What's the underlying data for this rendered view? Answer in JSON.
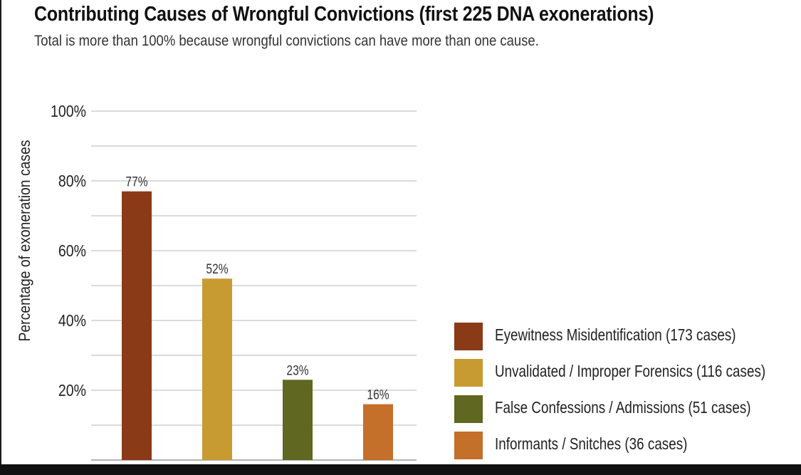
{
  "chart_data": {
    "type": "bar",
    "title": "Contributing Causes of Wrongful Convictions (first 225 DNA exonerations)",
    "subtitle": "Total is more than 100% because wrongful convictions can have more than one cause.",
    "ylabel": "Percentage  of exoneration cases",
    "xlabel": "",
    "ylim": [
      0,
      100
    ],
    "yticks": [
      20,
      40,
      60,
      80,
      100
    ],
    "ytick_labels": [
      "20%",
      "40%",
      "60%",
      "80%",
      "100%"
    ],
    "grid": true,
    "legend_position": "bottom-right",
    "categories": [
      "Eyewitness Misidentification (173 cases)",
      "Unvalidated / Improper Forensics (116 cases)",
      "False Confessions / Admissions (51 cases)",
      "Informants / Snitches (36 cases)"
    ],
    "values": [
      77,
      52,
      23,
      16
    ],
    "value_labels": [
      "77%",
      "52%",
      "23%",
      "16%"
    ],
    "colors": [
      "#8b3a17",
      "#c89b32",
      "#5f6720",
      "#c46f2a"
    ]
  }
}
